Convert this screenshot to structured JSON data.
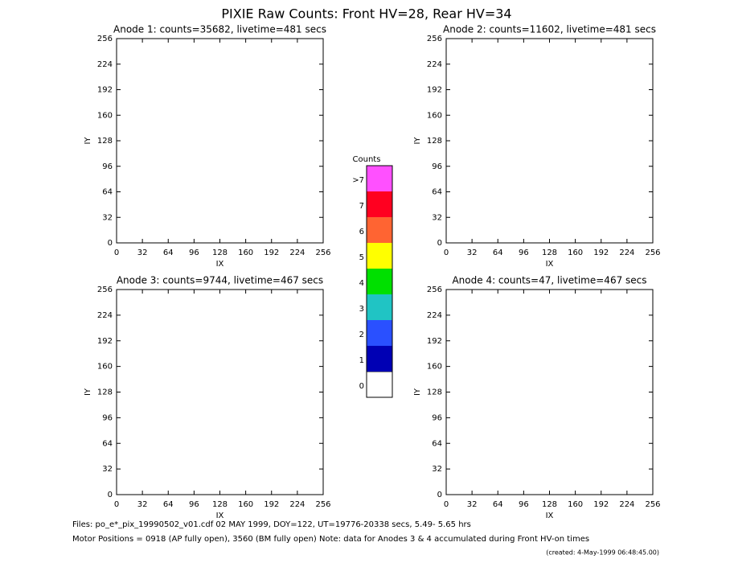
{
  "chart_data": [
    {
      "type": "heatmap",
      "title": "Anode 1: counts=35682, livetime=481 secs",
      "x_label": "IX",
      "y_label": "IY",
      "xlim": [
        0,
        256
      ],
      "ylim": [
        0,
        256
      ],
      "xticks": [
        0,
        32,
        64,
        96,
        128,
        160,
        192,
        224,
        256
      ],
      "yticks": [
        0,
        32,
        64,
        96,
        128,
        160,
        192,
        224,
        256
      ]
    },
    {
      "type": "heatmap",
      "title": "Anode 2: counts=11602, livetime=481 secs",
      "x_label": "IX",
      "y_label": "IY",
      "xlim": [
        0,
        256
      ],
      "ylim": [
        0,
        256
      ],
      "xticks": [
        0,
        32,
        64,
        96,
        128,
        160,
        192,
        224,
        256
      ],
      "yticks": [
        0,
        32,
        64,
        96,
        128,
        160,
        192,
        224,
        256
      ]
    },
    {
      "type": "heatmap",
      "title": "Anode 3: counts=9744, livetime=467 secs",
      "x_label": "IX",
      "y_label": "IY",
      "xlim": [
        0,
        256
      ],
      "ylim": [
        0,
        256
      ],
      "xticks": [
        0,
        32,
        64,
        96,
        128,
        160,
        192,
        224,
        256
      ],
      "yticks": [
        0,
        32,
        64,
        96,
        128,
        160,
        192,
        224,
        256
      ]
    },
    {
      "type": "heatmap",
      "title": "Anode 4: counts=47, livetime=467 secs",
      "x_label": "IX",
      "y_label": "IY",
      "xlim": [
        0,
        256
      ],
      "ylim": [
        0,
        256
      ],
      "xticks": [
        0,
        32,
        64,
        96,
        128,
        160,
        192,
        224,
        256
      ],
      "yticks": [
        0,
        32,
        64,
        96,
        128,
        160,
        192,
        224,
        256
      ]
    }
  ],
  "title": "PIXIE Raw Counts:  Front HV=28, Rear HV=34",
  "colorbar": {
    "title": "Counts",
    "labels": [
      "0",
      "1",
      "2",
      "3",
      "4",
      "5",
      "6",
      "7",
      ">7"
    ],
    "colors": [
      "#ffffff",
      "#0000b4",
      "#2a50ff",
      "#20c4c4",
      "#00e000",
      "#ffff00",
      "#ff6432",
      "#ff0020",
      "#ff50ff"
    ]
  },
  "footer": [
    "Files: po_e*_pix_19990502_v01.cdf   02 MAY 1999, DOY=122, UT=19776-20338 secs,  5.49- 5.65 hrs",
    "Motor Positions = 0918 (AP fully open), 3560 (BM fully open)    Note: data for Anodes 3 & 4 accumulated during Front HV-on times",
    "(created:  4-May-1999 06:48:45.00)"
  ]
}
